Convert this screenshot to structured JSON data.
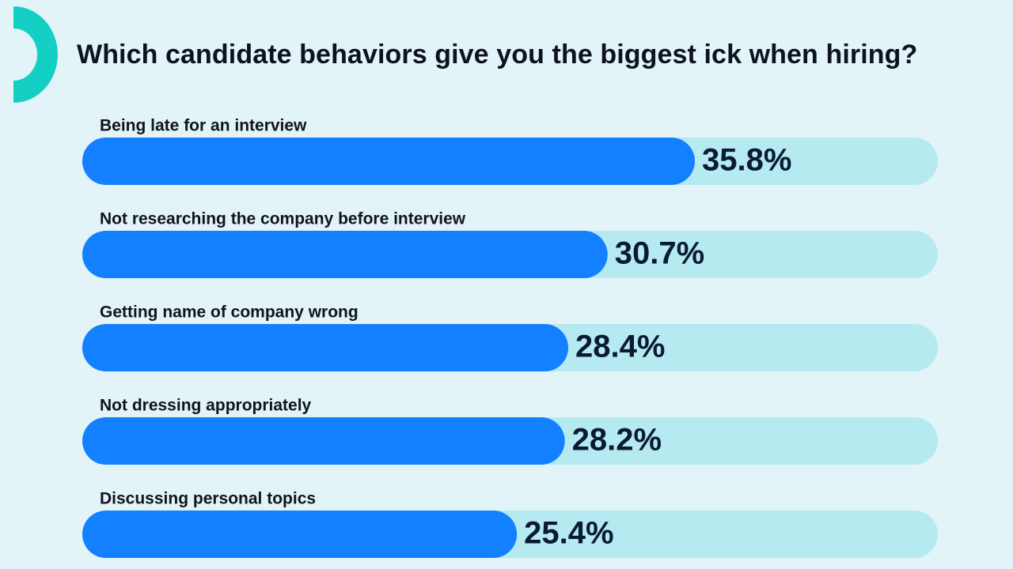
{
  "title": "Which candidate behaviors give you the biggest ick when hiring?",
  "colors": {
    "background": "#e2f4f8",
    "track": "#b4eaf0",
    "bar": "#1380ff",
    "logo": "#14d0c4",
    "value_text": "#0b1a33",
    "label_text": "#10141f"
  },
  "logo": {
    "icon": "half-ring-logo-icon"
  },
  "chart_data": {
    "type": "bar",
    "orientation": "horizontal",
    "title": "Which candidate behaviors give you the biggest ick when hiring?",
    "xlim": [
      0,
      50
    ],
    "unit": "%",
    "categories": [
      "Being late for an interview",
      "Not researching the company before interview",
      "Getting name of company wrong",
      "Not dressing appropriately",
      "Discussing personal topics"
    ],
    "values": [
      35.8,
      30.7,
      28.4,
      28.2,
      25.4
    ],
    "value_labels": [
      "35.8%",
      "30.7%",
      "28.4%",
      "28.2%",
      "25.4%"
    ],
    "grid": false,
    "legend": "none"
  }
}
